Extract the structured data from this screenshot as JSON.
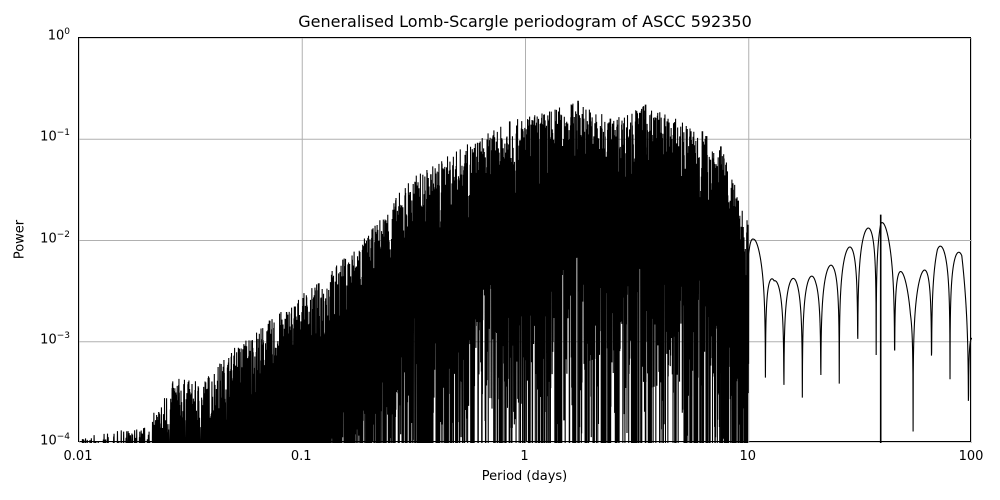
{
  "chart_data": {
    "type": "line",
    "title": "Generalised Lomb-Scargle periodogram of ASCC 592350",
    "xlabel": "Period (days)",
    "ylabel": "Power",
    "xscale": "log",
    "yscale": "log",
    "xlim": [
      0.01,
      100
    ],
    "ylim": [
      0.0001,
      1
    ],
    "grid": true,
    "x_ticks": [
      "0.01",
      "0.1",
      "1",
      "10",
      "100"
    ],
    "y_ticks": [
      {
        "base": "10",
        "exp": "0",
        "value": 1
      },
      {
        "base": "10",
        "exp": "−1",
        "value": 0.1
      },
      {
        "base": "10",
        "exp": "−2",
        "value": 0.01
      },
      {
        "base": "10",
        "exp": "−3",
        "value": 0.001
      },
      {
        "base": "10",
        "exp": "−4",
        "value": 0.0001
      }
    ],
    "envelope_peaks": [
      {
        "period": 0.012,
        "power": 0.00012
      },
      {
        "period": 0.02,
        "power": 0.00015
      },
      {
        "period": 0.027,
        "power": 0.00045
      },
      {
        "period": 0.035,
        "power": 0.0004
      },
      {
        "period": 0.05,
        "power": 0.0009
      },
      {
        "period": 0.08,
        "power": 0.002
      },
      {
        "period": 0.12,
        "power": 0.004
      },
      {
        "period": 0.2,
        "power": 0.012
      },
      {
        "period": 0.3,
        "power": 0.04
      },
      {
        "period": 0.5,
        "power": 0.08
      },
      {
        "period": 0.85,
        "power": 0.15
      },
      {
        "period": 1.72,
        "power": 0.24
      },
      {
        "period": 2.4,
        "power": 0.16
      },
      {
        "period": 3.45,
        "power": 0.22
      },
      {
        "period": 6.2,
        "power": 0.12
      },
      {
        "period": 7.5,
        "power": 0.085
      },
      {
        "period": 10.5,
        "power": 0.011
      },
      {
        "period": 13,
        "power": 0.004
      },
      {
        "period": 20,
        "power": 0.0045
      },
      {
        "period": 24,
        "power": 0.006
      },
      {
        "period": 39,
        "power": 0.018
      },
      {
        "period": 53,
        "power": 0.003
      },
      {
        "period": 70,
        "power": 0.009
      },
      {
        "period": 90,
        "power": 0.0075
      },
      {
        "period": 100,
        "power": 0.0015
      }
    ],
    "notable_peaks_days": [
      0.85,
      1.72,
      2.4,
      3.45,
      6.2,
      7.5,
      39
    ],
    "max_power": 0.24,
    "line_color": "#000000",
    "grid_color": "#b0b0b0"
  }
}
